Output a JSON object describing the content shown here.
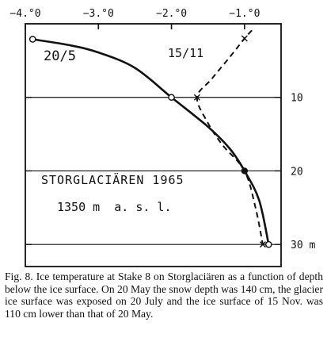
{
  "chart_data": {
    "type": "line",
    "title": "STORGLACIÄREN 1965",
    "subtitle": "1350 m  a. s. l.",
    "xlabel": "",
    "ylabel": "",
    "xlim": [
      -4.0,
      -0.5
    ],
    "ylim": [
      0,
      33
    ],
    "y_inverted": true,
    "x_ticks": [
      -4.0,
      -3.0,
      -2.0,
      -1.0
    ],
    "x_tick_labels": [
      "−4.°0",
      "−3.°0",
      "−2.°0",
      "−1.°0"
    ],
    "y_ticks": [
      10,
      20,
      30
    ],
    "y_tick_labels": [
      "10",
      "20",
      "30 m"
    ],
    "grid": false,
    "series": [
      {
        "name": "20/5",
        "style": "solid",
        "marker": "open-circle",
        "x": [
          -3.9,
          -3.4,
          -3.0,
          -2.5,
          -2.0,
          -1.5,
          -1.2,
          -1.0,
          -0.8,
          -0.67
        ],
        "y": [
          2.1,
          2.9,
          3.9,
          6.0,
          10.0,
          14.0,
          17.0,
          20.0,
          24.0,
          30.0
        ]
      },
      {
        "name": "15/11",
        "style": "dashed",
        "marker": "cross",
        "x": [
          -0.9,
          -1.0,
          -1.2,
          -1.45,
          -1.65,
          -1.5,
          -1.3,
          -1.0,
          -0.85,
          -0.75
        ],
        "y": [
          0.9,
          2.0,
          4.5,
          7.5,
          10.0,
          13.5,
          16.5,
          20.0,
          25.0,
          30.0
        ]
      }
    ]
  },
  "caption": "Fig. 8. Ice temperature at Stake 8 on Storglaciären as a function of depth below the ice surface. On 20 May the snow depth was 140 cm, the glacier ice surface was exposed on 20 July and the ice surface of 15 Nov. was 110 cm lower than that of 20 May."
}
